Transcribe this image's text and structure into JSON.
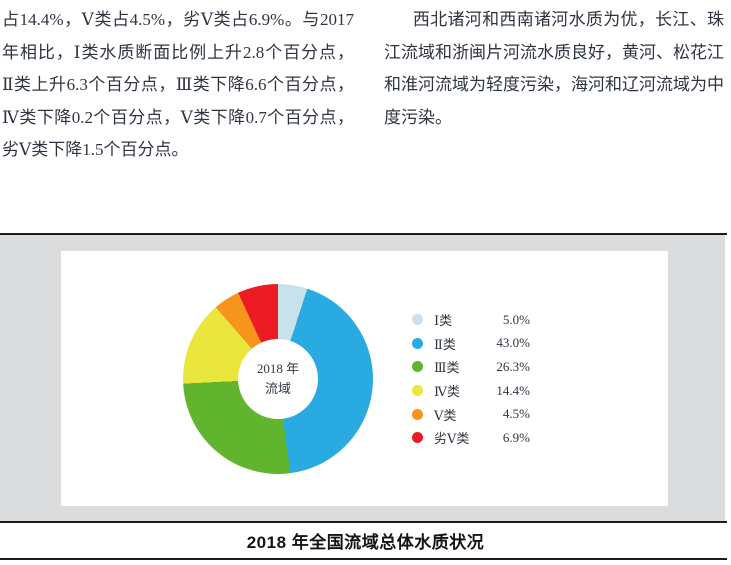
{
  "page": {
    "left_column_lines": [
      "占14.4%，Ⅴ类占4.5%，劣Ⅴ类占6.9%。与2017",
      "年相比，Ⅰ类水质断面比例上升2.8个百分点，",
      "Ⅱ类上升6.3个百分点，Ⅲ类下降6.6个百分点，",
      "Ⅳ类下降0.2个百分点，Ⅴ类下降0.7个百分点，",
      "劣Ⅴ类下降1.5个百分点。"
    ],
    "right_column_lines": [
      "西北诸河和西南诸河水质为优，长江、珠",
      "江流域和浙闽片河流水质良好，黄河、松花江",
      "和淮河流域为轻度污染，海河和辽河流域为中",
      "度污染。"
    ]
  },
  "figure": {
    "caption": "2018 年全国流域总体水质状况",
    "center_label_line1": "2018 年",
    "center_label_line2": "流域"
  },
  "chart_data": {
    "type": "pie",
    "subtype": "donut",
    "title": "2018 年全国流域总体水质状况",
    "center_label": [
      "2018 年",
      "流域"
    ],
    "categories": [
      "Ⅰ类",
      "Ⅱ类",
      "Ⅲ类",
      "Ⅳ类",
      "Ⅴ类",
      "劣Ⅴ类"
    ],
    "values": [
      5.0,
      43.0,
      26.3,
      14.4,
      4.5,
      6.9
    ],
    "value_labels": [
      "5.0%",
      "43.0%",
      "26.3%",
      "14.4%",
      "4.5%",
      "6.9%"
    ],
    "colors": [
      "#c8e1ea",
      "#29abe2",
      "#61b42e",
      "#ebe63e",
      "#f7941e",
      "#ed1c24"
    ],
    "legend_position": "right",
    "start_angle_deg": 0,
    "direction": "clockwise"
  }
}
